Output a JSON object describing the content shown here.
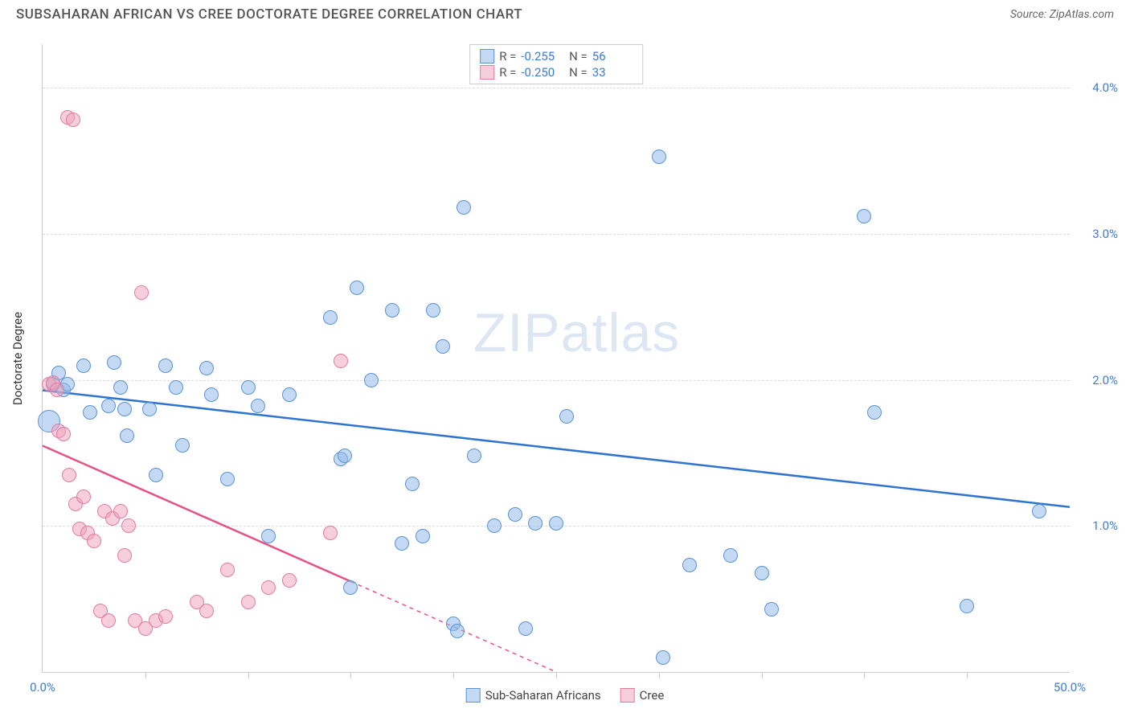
{
  "title": "SUBSAHARAN AFRICAN VS CREE DOCTORATE DEGREE CORRELATION CHART",
  "source_label": "Source:",
  "source_value": "ZipAtlas.com",
  "watermark_a": "ZIP",
  "watermark_b": "atlas",
  "chart": {
    "type": "scatter",
    "y_axis_title": "Doctorate Degree",
    "xlim": [
      0,
      50
    ],
    "ylim": [
      0,
      4.3
    ],
    "x_ticks_minor": [
      5,
      10,
      15,
      20,
      25,
      30,
      35,
      40,
      45
    ],
    "x_tick_labels": [
      {
        "pos": 0,
        "label": "0.0%"
      },
      {
        "pos": 50,
        "label": "50.0%"
      }
    ],
    "y_gridlines": [
      1.0,
      2.0,
      3.0,
      4.0
    ],
    "y_tick_labels": [
      {
        "pos": 1.0,
        "label": "1.0%"
      },
      {
        "pos": 2.0,
        "label": "2.0%"
      },
      {
        "pos": 3.0,
        "label": "3.0%"
      },
      {
        "pos": 4.0,
        "label": "4.0%"
      }
    ],
    "marker_radius": 9,
    "marker_radius_large": 14,
    "background_color": "#ffffff",
    "grid_color": "#dddddd",
    "axis_color": "#cccccc",
    "tick_label_color": "#3b7dd8",
    "series": [
      {
        "name": "Sub-Saharan Africans",
        "fill": "rgba(147,186,233,0.55)",
        "stroke": "#5a93d6",
        "trend_color": "#2f74d0",
        "trend": {
          "x1": 0,
          "y1": 1.93,
          "x2": 50,
          "y2": 1.13,
          "dash_after_x": null
        },
        "R": "-0.255",
        "N": "56",
        "points": [
          [
            0.3,
            1.72,
            14
          ],
          [
            0.5,
            1.97
          ],
          [
            0.8,
            2.05
          ],
          [
            1.0,
            1.93
          ],
          [
            1.2,
            1.97
          ],
          [
            2.0,
            2.1
          ],
          [
            2.3,
            1.78
          ],
          [
            3.2,
            1.82
          ],
          [
            3.8,
            1.95
          ],
          [
            4.0,
            1.8
          ],
          [
            4.1,
            1.62
          ],
          [
            5.2,
            1.8
          ],
          [
            5.5,
            1.35
          ],
          [
            6.0,
            2.1
          ],
          [
            6.5,
            1.95
          ],
          [
            8.0,
            2.08
          ],
          [
            8.2,
            1.9
          ],
          [
            9.0,
            1.32
          ],
          [
            10.0,
            1.95
          ],
          [
            10.5,
            1.82
          ],
          [
            11.0,
            0.93
          ],
          [
            14.0,
            2.43
          ],
          [
            14.5,
            1.46
          ],
          [
            14.7,
            1.48
          ],
          [
            15.0,
            0.58
          ],
          [
            15.3,
            2.63
          ],
          [
            16.0,
            2.0
          ],
          [
            17.0,
            2.48
          ],
          [
            17.5,
            0.88
          ],
          [
            18.0,
            1.29
          ],
          [
            18.5,
            0.93
          ],
          [
            19.0,
            2.48
          ],
          [
            19.5,
            2.23
          ],
          [
            20.0,
            0.33
          ],
          [
            20.2,
            0.28
          ],
          [
            20.5,
            3.18
          ],
          [
            21.0,
            1.48
          ],
          [
            23.0,
            1.08
          ],
          [
            23.5,
            0.3
          ],
          [
            24.0,
            1.02
          ],
          [
            25.0,
            1.02
          ],
          [
            25.5,
            1.75
          ],
          [
            30.0,
            3.53
          ],
          [
            30.2,
            0.1
          ],
          [
            31.5,
            0.73
          ],
          [
            33.5,
            0.8
          ],
          [
            35.0,
            0.68
          ],
          [
            35.5,
            0.43
          ],
          [
            40.0,
            3.12
          ],
          [
            40.5,
            1.78
          ],
          [
            45.0,
            0.45
          ],
          [
            48.5,
            1.1
          ],
          [
            3.5,
            2.12
          ],
          [
            6.8,
            1.55
          ],
          [
            12.0,
            1.9
          ],
          [
            22.0,
            1.0
          ]
        ]
      },
      {
        "name": "Cree",
        "fill": "rgba(240,160,185,0.5)",
        "stroke": "#e27ba0",
        "trend_color": "#e55384",
        "trend": {
          "x1": 0,
          "y1": 1.55,
          "x2": 25,
          "y2": 0.0,
          "dash_after_x": 15
        },
        "R": "-0.250",
        "N": "33",
        "points": [
          [
            0.3,
            1.97
          ],
          [
            0.5,
            1.98
          ],
          [
            0.7,
            1.93
          ],
          [
            0.8,
            1.65
          ],
          [
            1.0,
            1.63
          ],
          [
            1.2,
            3.8
          ],
          [
            1.5,
            3.78
          ],
          [
            1.3,
            1.35
          ],
          [
            1.6,
            1.15
          ],
          [
            1.8,
            0.98
          ],
          [
            2.0,
            1.2
          ],
          [
            2.2,
            0.95
          ],
          [
            2.5,
            0.9
          ],
          [
            2.8,
            0.42
          ],
          [
            3.0,
            1.1
          ],
          [
            3.2,
            0.35
          ],
          [
            3.4,
            1.05
          ],
          [
            3.8,
            1.1
          ],
          [
            4.0,
            0.8
          ],
          [
            4.2,
            1.0
          ],
          [
            4.5,
            0.35
          ],
          [
            4.8,
            2.6
          ],
          [
            5.0,
            0.3
          ],
          [
            5.5,
            0.35
          ],
          [
            6.0,
            0.38
          ],
          [
            7.5,
            0.48
          ],
          [
            8.0,
            0.42
          ],
          [
            9.0,
            0.7
          ],
          [
            10.0,
            0.48
          ],
          [
            11.0,
            0.58
          ],
          [
            12.0,
            0.63
          ],
          [
            14.0,
            0.95
          ],
          [
            14.5,
            2.13
          ]
        ]
      }
    ]
  }
}
